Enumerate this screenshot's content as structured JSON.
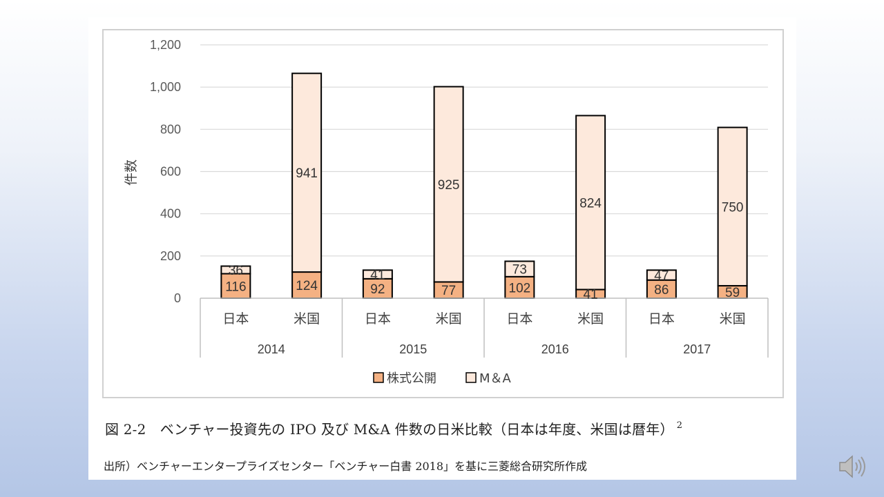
{
  "caption": {
    "text": "図 2-2　ベンチャー投資先の IPO 及び M&A 件数の日米比較（日本は年度、米国は暦年）",
    "footnote": "2"
  },
  "source": "出所）ベンチャーエンタープライズセンター「ベンチャー白書 2018」を基に三菱総合研究所作成",
  "chart_data": {
    "type": "bar",
    "stacked": true,
    "ylabel": "件数",
    "ylim": [
      0,
      1200
    ],
    "yticks": [
      0,
      200,
      400,
      600,
      800,
      1000,
      1200
    ],
    "ytick_labels": [
      "0",
      "200",
      "400",
      "600",
      "800",
      "1,000",
      "1,200"
    ],
    "grid": true,
    "legend_position": "bottom",
    "groups": [
      "2014",
      "2015",
      "2016",
      "2017"
    ],
    "categories": [
      "日本",
      "米国",
      "日本",
      "米国",
      "日本",
      "米国",
      "日本",
      "米国"
    ],
    "series": [
      {
        "name": "株式公開",
        "color": "#f4b183",
        "values": [
          116,
          124,
          92,
          77,
          102,
          41,
          86,
          59
        ]
      },
      {
        "name": "M＆A",
        "color": "#fde9dc",
        "values": [
          36,
          941,
          41,
          925,
          73,
          824,
          47,
          750
        ]
      }
    ]
  },
  "icons": {
    "speaker": "speaker-icon"
  }
}
